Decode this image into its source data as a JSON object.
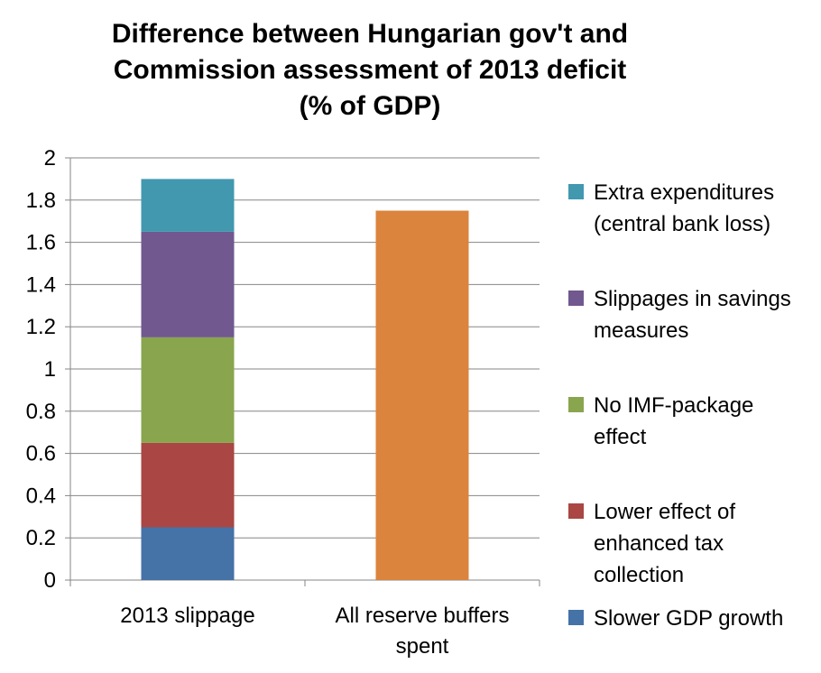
{
  "title_lines": [
    "Difference between Hungarian gov't and",
    "Commission assessment of 2013 deficit",
    "(% of GDP)"
  ],
  "colors": {
    "slower_gdp": "#4572A7",
    "lower_tax": "#AA4643",
    "no_imf": "#89A54E",
    "slippages": "#71588F",
    "extra_exp": "#4198AF",
    "reserve": "#DB843D",
    "grid": "#868686"
  },
  "chart_data": {
    "type": "bar",
    "stacked": true,
    "title": "Difference between Hungarian gov't and Commission assessment of 2013 deficit (% of GDP)",
    "categories": [
      "2013 slippage",
      "All reserve buffers spent"
    ],
    "category_lines": [
      [
        "2013 slippage"
      ],
      [
        "All reserve buffers",
        "spent"
      ]
    ],
    "ylim": [
      0,
      2
    ],
    "yticks": [
      "0",
      "0.2",
      "0.4",
      "0.6",
      "0.8",
      "1",
      "1.2",
      "1.4",
      "1.6",
      "1.8",
      "2"
    ],
    "grid": true,
    "legend_position": "right",
    "series": [
      {
        "name": "Slower GDP growth",
        "label_lines": [
          "Slower GDP growth"
        ],
        "values": [
          0.25,
          0
        ],
        "color": "#4572A7"
      },
      {
        "name": "Lower effect of enhanced tax collection",
        "label_lines": [
          "Lower effect of",
          "enhanced tax",
          "collection"
        ],
        "values": [
          0.4,
          0
        ],
        "color": "#AA4643"
      },
      {
        "name": "No IMF-package effect",
        "label_lines": [
          "No IMF-package",
          "effect"
        ],
        "values": [
          0.5,
          0
        ],
        "color": "#89A54E"
      },
      {
        "name": "Slippages in savings measures",
        "label_lines": [
          "Slippages in savings",
          "measures"
        ],
        "values": [
          0.5,
          0
        ],
        "color": "#71588F"
      },
      {
        "name": "Extra expenditures (central bank loss)",
        "label_lines": [
          "Extra expenditures",
          "(central bank loss)"
        ],
        "values": [
          0.25,
          0
        ],
        "color": "#4198AF"
      },
      {
        "name": "",
        "label_lines": [],
        "values": [
          0,
          1.75
        ],
        "color": "#DB843D",
        "in_legend": false
      }
    ]
  }
}
